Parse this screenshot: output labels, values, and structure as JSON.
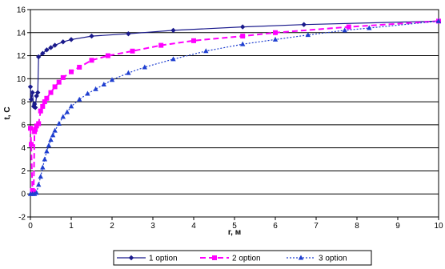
{
  "chart_data": {
    "type": "line",
    "xlabel": "r, м",
    "ylabel": "t, C",
    "xlim": [
      0,
      10
    ],
    "ylim": [
      -2,
      16
    ],
    "xticks": [
      "0",
      "1",
      "2",
      "3",
      "4",
      "5",
      "6",
      "7",
      "8",
      "9",
      "10"
    ],
    "yticks": [
      "-2",
      "0",
      "2",
      "4",
      "6",
      "8",
      "10",
      "12",
      "14",
      "16"
    ],
    "grid": "horizontal",
    "legend_position": "bottom",
    "series": [
      {
        "name": "1 option",
        "color": "#1a1a8c",
        "marker": "diamond",
        "dash": "solid",
        "x": [
          0,
          0.02,
          0.05,
          0.08,
          0.1,
          0.12,
          0.15,
          0.18,
          0.2,
          0.3,
          0.4,
          0.5,
          0.6,
          0.8,
          1.0,
          1.5,
          2.4,
          3.5,
          5.2,
          6.7,
          10
        ],
        "y": [
          9.3,
          8.2,
          8.8,
          7.6,
          7.8,
          7.5,
          8.5,
          8.8,
          11.9,
          12.2,
          12.5,
          12.7,
          12.9,
          13.2,
          13.4,
          13.7,
          13.9,
          14.2,
          14.5,
          14.7,
          15.0
        ]
      },
      {
        "name": "2 option",
        "color": "#ff00ff",
        "marker": "square",
        "dash": "dashed",
        "x": [
          0,
          0.02,
          0.05,
          0.08,
          0.1,
          0.12,
          0.15,
          0.2,
          0.25,
          0.3,
          0.35,
          0.4,
          0.5,
          0.6,
          0.7,
          0.8,
          1.0,
          1.2,
          1.5,
          1.9,
          2.5,
          3.2,
          4.0,
          5.2,
          6.0,
          7.8,
          10
        ],
        "y": [
          5.7,
          4.3,
          0.3,
          0.2,
          5.4,
          5.6,
          5.9,
          6.1,
          7.2,
          7.6,
          8.0,
          8.3,
          8.8,
          9.3,
          9.7,
          10.1,
          10.6,
          11.0,
          11.6,
          12.0,
          12.4,
          12.9,
          13.3,
          13.7,
          14.0,
          14.5,
          15.0
        ]
      },
      {
        "name": "3 option",
        "color": "#1f3fd0",
        "marker": "triangle",
        "dash": "dotted",
        "x": [
          0,
          0.05,
          0.1,
          0.15,
          0.2,
          0.25,
          0.3,
          0.35,
          0.4,
          0.45,
          0.5,
          0.55,
          0.6,
          0.7,
          0.8,
          0.9,
          1.0,
          1.2,
          1.4,
          1.6,
          1.8,
          2.0,
          2.4,
          2.8,
          3.5,
          4.3,
          5.2,
          6.0,
          6.8,
          7.7,
          8.3,
          10
        ],
        "y": [
          0,
          0,
          0,
          0.1,
          0.8,
          1.5,
          2.3,
          3.0,
          3.7,
          4.2,
          4.7,
          5.1,
          5.5,
          6.1,
          6.7,
          7.1,
          7.6,
          8.2,
          8.7,
          9.1,
          9.5,
          9.9,
          10.5,
          11.0,
          11.7,
          12.4,
          13.0,
          13.4,
          13.8,
          14.2,
          14.4,
          15.0
        ]
      }
    ]
  }
}
